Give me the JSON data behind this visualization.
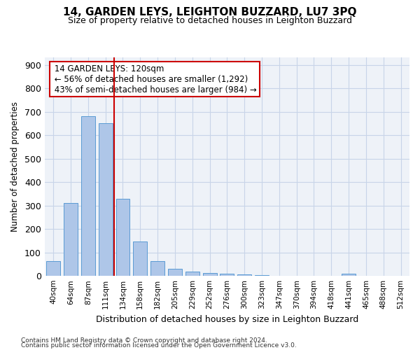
{
  "title": "14, GARDEN LEYS, LEIGHTON BUZZARD, LU7 3PQ",
  "subtitle": "Size of property relative to detached houses in Leighton Buzzard",
  "xlabel": "Distribution of detached houses by size in Leighton Buzzard",
  "ylabel": "Number of detached properties",
  "bar_labels": [
    "40sqm",
    "64sqm",
    "87sqm",
    "111sqm",
    "134sqm",
    "158sqm",
    "182sqm",
    "205sqm",
    "229sqm",
    "252sqm",
    "276sqm",
    "300sqm",
    "323sqm",
    "347sqm",
    "370sqm",
    "394sqm",
    "418sqm",
    "441sqm",
    "465sqm",
    "488sqm",
    "512sqm"
  ],
  "bar_values": [
    62,
    310,
    680,
    650,
    328,
    148,
    62,
    30,
    18,
    12,
    8,
    7,
    5,
    0,
    0,
    0,
    0,
    8,
    0,
    0,
    0
  ],
  "bar_color": "#aec6e8",
  "bar_edge_color": "#5a9bd4",
  "vline_color": "#cc0000",
  "annotation_title": "14 GARDEN LEYS: 120sqm",
  "annotation_line1": "← 56% of detached houses are smaller (1,292)",
  "annotation_line2": "43% of semi-detached houses are larger (984) →",
  "annotation_box_color": "#ffffff",
  "annotation_box_edge": "#cc0000",
  "ylim": [
    0,
    930
  ],
  "yticks": [
    0,
    100,
    200,
    300,
    400,
    500,
    600,
    700,
    800,
    900
  ],
  "footnote1": "Contains HM Land Registry data © Crown copyright and database right 2024.",
  "footnote2": "Contains public sector information licensed under the Open Government Licence v3.0."
}
